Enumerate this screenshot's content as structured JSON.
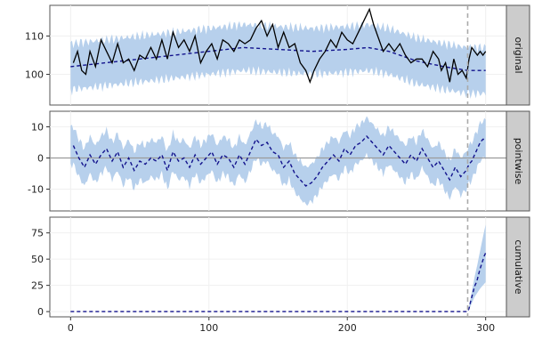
{
  "chart_data": {
    "type": "line",
    "x": {
      "ticks": [
        0,
        100,
        200,
        300
      ],
      "tick_labels": [
        "0",
        "100",
        "200",
        "300"
      ],
      "range": [
        -15,
        315
      ]
    },
    "intervention_x": 287,
    "colors": {
      "band": "#b7d0ec",
      "dashed": "#12128c",
      "observed": "#000000",
      "intervention": "#aaaaaa",
      "zeroline": "#9a9a9a",
      "strip": "#cccccc",
      "grid": "#f0f0f0"
    },
    "panels": [
      {
        "name": "original",
        "strip": "original",
        "ylim": [
          92,
          118
        ],
        "yticks": [
          100,
          110
        ],
        "ytick_labels": [
          "100",
          "110"
        ],
        "observed_anchors": [
          [
            2,
            103
          ],
          [
            5,
            106
          ],
          [
            8,
            101
          ],
          [
            11,
            100
          ],
          [
            14,
            106
          ],
          [
            18,
            102
          ],
          [
            22,
            109
          ],
          [
            26,
            106
          ],
          [
            30,
            103
          ],
          [
            34,
            108
          ],
          [
            38,
            103
          ],
          [
            42,
            104
          ],
          [
            46,
            101
          ],
          [
            50,
            105
          ],
          [
            54,
            104
          ],
          [
            58,
            107
          ],
          [
            62,
            104
          ],
          [
            66,
            109
          ],
          [
            70,
            104
          ],
          [
            74,
            111
          ],
          [
            78,
            107
          ],
          [
            82,
            109
          ],
          [
            86,
            106
          ],
          [
            90,
            110
          ],
          [
            94,
            103
          ],
          [
            98,
            106
          ],
          [
            102,
            108
          ],
          [
            106,
            104
          ],
          [
            110,
            109
          ],
          [
            114,
            108
          ],
          [
            118,
            106
          ],
          [
            122,
            109
          ],
          [
            126,
            108
          ],
          [
            130,
            109
          ],
          [
            134,
            112
          ],
          [
            138,
            114
          ],
          [
            142,
            110
          ],
          [
            146,
            113
          ],
          [
            150,
            107
          ],
          [
            154,
            111
          ],
          [
            158,
            107
          ],
          [
            162,
            108
          ],
          [
            166,
            103
          ],
          [
            170,
            101
          ],
          [
            173,
            98
          ],
          [
            176,
            101
          ],
          [
            180,
            104
          ],
          [
            184,
            106
          ],
          [
            188,
            109
          ],
          [
            192,
            107
          ],
          [
            196,
            111
          ],
          [
            200,
            109
          ],
          [
            204,
            108
          ],
          [
            208,
            111
          ],
          [
            212,
            114
          ],
          [
            216,
            117
          ],
          [
            219,
            113
          ],
          [
            222,
            110
          ],
          [
            226,
            106
          ],
          [
            230,
            108
          ],
          [
            234,
            106
          ],
          [
            238,
            108
          ],
          [
            242,
            105
          ],
          [
            246,
            103
          ],
          [
            250,
            104
          ],
          [
            254,
            104
          ],
          [
            258,
            102
          ],
          [
            262,
            106
          ],
          [
            266,
            104
          ],
          [
            268,
            101
          ],
          [
            271,
            103
          ],
          [
            274,
            98
          ],
          [
            277,
            104
          ],
          [
            280,
            100
          ],
          [
            283,
            101
          ],
          [
            286,
            99
          ],
          [
            288,
            104
          ],
          [
            290,
            107
          ],
          [
            292,
            106
          ],
          [
            294,
            105
          ],
          [
            296,
            106
          ],
          [
            298,
            105
          ],
          [
            300,
            106
          ]
        ],
        "expected_anchors": [
          [
            0,
            102
          ],
          [
            25,
            103
          ],
          [
            50,
            104
          ],
          [
            75,
            105
          ],
          [
            100,
            106
          ],
          [
            125,
            107
          ],
          [
            150,
            106.5
          ],
          [
            175,
            106
          ],
          [
            200,
            106.5
          ],
          [
            215,
            107
          ],
          [
            230,
            106
          ],
          [
            250,
            103.5
          ],
          [
            270,
            102
          ],
          [
            287,
            101
          ],
          [
            300,
            101
          ]
        ],
        "band_half_width": 6,
        "band_noise": 1.6,
        "zero_line": null,
        "show_observed": true
      },
      {
        "name": "pointwise",
        "strip": "pointwise",
        "ylim": [
          -17,
          15
        ],
        "yticks": [
          -10,
          0,
          10
        ],
        "ytick_labels": [
          "-10",
          "0",
          "10"
        ],
        "expected_anchors": [
          [
            2,
            4
          ],
          [
            6,
            0
          ],
          [
            10,
            -3
          ],
          [
            14,
            1
          ],
          [
            18,
            -2
          ],
          [
            22,
            1
          ],
          [
            26,
            3
          ],
          [
            30,
            -1
          ],
          [
            34,
            2
          ],
          [
            38,
            -3
          ],
          [
            42,
            0
          ],
          [
            46,
            -4
          ],
          [
            50,
            -1
          ],
          [
            54,
            -2
          ],
          [
            58,
            0
          ],
          [
            62,
            -1
          ],
          [
            66,
            1
          ],
          [
            70,
            -4
          ],
          [
            74,
            2
          ],
          [
            78,
            -1
          ],
          [
            82,
            0
          ],
          [
            86,
            -3
          ],
          [
            90,
            1
          ],
          [
            94,
            -2
          ],
          [
            98,
            0
          ],
          [
            102,
            2
          ],
          [
            106,
            -2
          ],
          [
            110,
            1
          ],
          [
            114,
            0
          ],
          [
            118,
            -3
          ],
          [
            122,
            1
          ],
          [
            126,
            -2
          ],
          [
            130,
            2
          ],
          [
            134,
            6
          ],
          [
            138,
            4
          ],
          [
            142,
            5
          ],
          [
            146,
            2
          ],
          [
            150,
            1
          ],
          [
            154,
            -3
          ],
          [
            158,
            -1
          ],
          [
            162,
            -5
          ],
          [
            166,
            -7
          ],
          [
            170,
            -9
          ],
          [
            174,
            -8
          ],
          [
            178,
            -6
          ],
          [
            182,
            -3
          ],
          [
            186,
            -1
          ],
          [
            190,
            1
          ],
          [
            194,
            -1
          ],
          [
            198,
            3
          ],
          [
            202,
            1
          ],
          [
            206,
            4
          ],
          [
            210,
            5
          ],
          [
            214,
            7
          ],
          [
            218,
            5
          ],
          [
            222,
            3
          ],
          [
            226,
            1
          ],
          [
            230,
            4
          ],
          [
            234,
            2
          ],
          [
            238,
            0
          ],
          [
            242,
            -2
          ],
          [
            246,
            1
          ],
          [
            250,
            -1
          ],
          [
            254,
            3
          ],
          [
            258,
            0
          ],
          [
            262,
            -3
          ],
          [
            266,
            -1
          ],
          [
            270,
            -4
          ],
          [
            274,
            -7
          ],
          [
            278,
            -3
          ],
          [
            282,
            -6
          ],
          [
            286,
            -4
          ],
          [
            288,
            -2
          ],
          [
            290,
            -1
          ],
          [
            292,
            1
          ],
          [
            294,
            3
          ],
          [
            296,
            5
          ],
          [
            298,
            6
          ],
          [
            300,
            6
          ]
        ],
        "band_half_width": 6,
        "band_noise": 1.4,
        "zero_line": 0,
        "show_observed": false
      },
      {
        "name": "cumulative",
        "strip": "cumulative",
        "ylim": [
          -5,
          90
        ],
        "yticks": [
          0,
          25,
          50,
          75
        ],
        "ytick_labels": [
          "0",
          "25",
          "50",
          "75"
        ],
        "expected_anchors": [
          [
            0,
            0
          ],
          [
            287,
            0
          ],
          [
            288,
            3
          ],
          [
            289,
            9
          ],
          [
            290,
            14
          ],
          [
            291,
            19
          ],
          [
            292,
            24
          ],
          [
            293,
            27
          ],
          [
            294,
            31
          ],
          [
            295,
            36
          ],
          [
            296,
            41
          ],
          [
            297,
            45
          ],
          [
            298,
            49
          ],
          [
            299,
            53
          ],
          [
            300,
            56
          ]
        ],
        "band_anchors_low": [
          [
            0,
            0
          ],
          [
            287,
            0
          ],
          [
            288,
            2
          ],
          [
            290,
            8
          ],
          [
            292,
            14
          ],
          [
            294,
            18
          ],
          [
            296,
            22
          ],
          [
            298,
            25
          ],
          [
            300,
            28
          ]
        ],
        "band_anchors_high": [
          [
            0,
            0
          ],
          [
            287,
            0
          ],
          [
            288,
            5
          ],
          [
            290,
            19
          ],
          [
            292,
            33
          ],
          [
            294,
            45
          ],
          [
            296,
            58
          ],
          [
            298,
            71
          ],
          [
            300,
            83
          ]
        ],
        "zero_line": null,
        "show_observed": false
      }
    ]
  }
}
